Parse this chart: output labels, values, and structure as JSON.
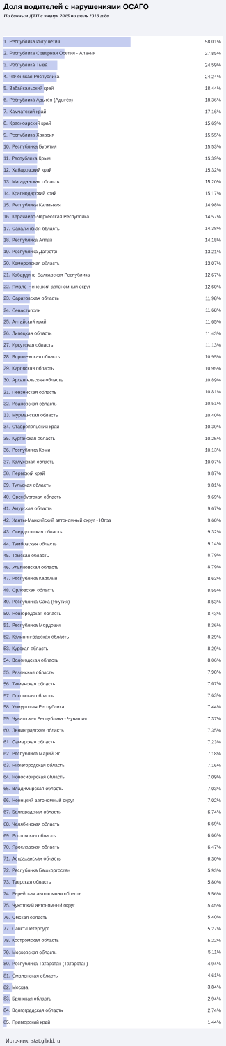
{
  "chart_data": {
    "type": "bar",
    "orientation": "horizontal",
    "title": "Доля водителей с нарушениями ОСАГО",
    "subtitle": "По данным ДТП с января 2015 по июль 2018 года",
    "annotations": [
      "Источник: stat.gibdd.ru"
    ],
    "color": "#c5cdf0",
    "xlim": [
      0,
      100
    ],
    "tick_labels": "y",
    "categories": [
      "1. Республика Ингушетия",
      "2. Республика Северная Осетия - Алания",
      "3. Республика Тыва",
      "4. Чеченская Республика",
      "5. Забайкальский край",
      "6. Республика Адыгея (Адыгея)",
      "7. Камчатский край",
      "8. Красноярский край",
      "9. Республика Хакасия",
      "10. Республика Бурятия",
      "11. Республика Крым",
      "12. Хабаровский край",
      "13. Магаданская область",
      "14. Краснодарский край",
      "15. Республика Калмыкия",
      "16. Карачаево-Черкесская Республика",
      "17. Сахалинская область",
      "18. Республика Алтай",
      "19. Республика Дагестан",
      "20. Кемеровская область",
      "21. Кабардино-Балкарская Республика",
      "22. Ямало-Ненецкий автономный округ",
      "23. Саратовская область",
      "24. Севастополь",
      "25. Алтайский край",
      "26. Липецкая область",
      "27. Иркутская область",
      "28. Воронежская область",
      "29. Кировская область",
      "30. Архангельская область",
      "31. Пензенская область",
      "32. Ивановская область",
      "33. Мурманская область",
      "34. Ставропольский край",
      "35. Курганская область",
      "36. Республика Коми",
      "37. Калужская область",
      "38. Пермский край",
      "39. Тульская область",
      "40. Оренбургская область",
      "41. Амурская область",
      "42. Ханты-Мансийский автономный округ - Югра",
      "43. Свердловская область",
      "44. Тамбовская область",
      "45. Томская область",
      "46. Ульяновская область",
      "47. Республика Карелия",
      "48. Орловская область",
      "49. Республика Саха (Якутия)",
      "50. Новгородская область",
      "51. Республика Мордовия",
      "52. Калининградская область",
      "53. Курская область",
      "54. Вологодская область",
      "55. Рязанская область",
      "56. Тюменская область",
      "57. Псковская область",
      "58. Удмуртская Республика",
      "59. Чувашская Республика - Чувашия",
      "60. Ленинградская область",
      "61. Самарская область",
      "62. Республика Марий Эл",
      "63. Нижегородская область",
      "64. Новосибирская область",
      "65. Владимирская область",
      "66. Ненецкий автономный округ",
      "67. Белгородская область",
      "68. Челябинская область",
      "69. Ростовская область",
      "70. Ярославская область",
      "71. Астраханская область",
      "72. Республика Башкортостан",
      "73. Тверская область",
      "74. Еврейская автономная область",
      "75. Чукотский автономный округ",
      "76. Омская область",
      "77. Санкт-Петербург",
      "78. Костромская область",
      "79. Московская область",
      "80. Республика Татарстан (Татарстан)",
      "81. Смоленская область",
      "82. Москва",
      "83. Брянская область",
      "84. Волгоградская область",
      "85. Приморский край"
    ],
    "values": [
      58.01,
      27.85,
      24.59,
      24.24,
      18.44,
      18.36,
      17.16,
      15.69,
      15.55,
      15.53,
      15.39,
      15.32,
      15.2,
      15.17,
      14.98,
      14.57,
      14.38,
      14.18,
      13.21,
      13.07,
      12.67,
      12.6,
      11.98,
      11.68,
      11.65,
      11.43,
      11.13,
      10.95,
      10.95,
      10.89,
      10.81,
      10.51,
      10.4,
      10.3,
      10.25,
      10.13,
      10.07,
      9.87,
      9.81,
      9.69,
      9.67,
      9.6,
      9.32,
      9.14,
      8.79,
      8.79,
      8.63,
      8.55,
      8.53,
      8.43,
      8.36,
      8.29,
      8.29,
      8.06,
      7.98,
      7.67,
      7.63,
      7.44,
      7.37,
      7.35,
      7.23,
      7.18,
      7.16,
      7.09,
      7.03,
      7.02,
      6.74,
      6.69,
      6.66,
      6.47,
      6.3,
      5.93,
      5.8,
      5.56,
      5.45,
      5.4,
      5.27,
      5.22,
      5.11,
      4.94,
      4.61,
      3.84,
      2.94,
      2.74,
      1.44
    ],
    "value_labels": [
      "58,01%",
      "27,85%",
      "24,59%",
      "24,24%",
      "18,44%",
      "18,36%",
      "17,16%",
      "15,69%",
      "15,55%",
      "15,53%",
      "15,39%",
      "15,32%",
      "15,20%",
      "15,17%",
      "14,98%",
      "14,57%",
      "14,38%",
      "14,18%",
      "13,21%",
      "13,07%",
      "12,67%",
      "12,60%",
      "11,98%",
      "11,68%",
      "11,65%",
      "11,43%",
      "11,13%",
      "10,95%",
      "10,95%",
      "10,89%",
      "10,81%",
      "10,51%",
      "10,40%",
      "10,30%",
      "10,25%",
      "10,13%",
      "10,07%",
      "9,87%",
      "9,81%",
      "9,69%",
      "9,67%",
      "9,60%",
      "9,32%",
      "9,14%",
      "8,79%",
      "8,79%",
      "8,63%",
      "8,55%",
      "8,53%",
      "8,43%",
      "8,36%",
      "8,29%",
      "8,29%",
      "8,06%",
      "7,98%",
      "7,67%",
      "7,63%",
      "7,44%",
      "7,37%",
      "7,35%",
      "7,23%",
      "7,18%",
      "7,16%",
      "7,09%",
      "7,03%",
      "7,02%",
      "6,74%",
      "6,69%",
      "6,66%",
      "6,47%",
      "6,30%",
      "5,93%",
      "5,80%",
      "5,56%",
      "5,45%",
      "5,40%",
      "5,27%",
      "5,22%",
      "5,11%",
      "4,94%",
      "4,61%",
      "3,84%",
      "2,94%",
      "2,74%",
      "1,44%"
    ]
  }
}
